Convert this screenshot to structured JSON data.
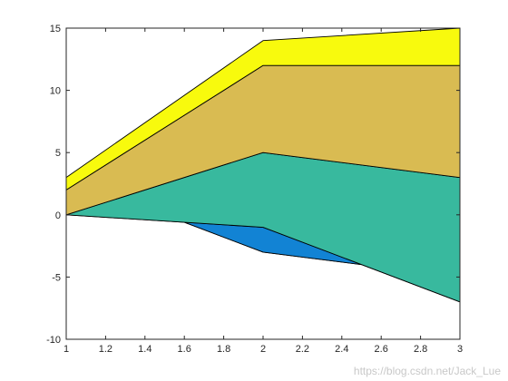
{
  "watermark": "https://blog.csdn.net/Jack_Lue",
  "chart_data": {
    "type": "area",
    "title": "",
    "xlabel": "",
    "ylabel": "",
    "xlim": [
      1,
      3
    ],
    "ylim": [
      -10,
      15
    ],
    "grid": false,
    "x_ticks": [
      1,
      1.2,
      1.4,
      1.6,
      1.8,
      2,
      2.2,
      2.4,
      2.6,
      2.8,
      3
    ],
    "x_tick_labels": [
      "1",
      "1.2",
      "1.4",
      "1.6",
      "1.8",
      "2",
      "2.2",
      "2.4",
      "2.6",
      "2.8",
      "3"
    ],
    "y_ticks": [
      -10,
      -5,
      0,
      5,
      10,
      15
    ],
    "y_tick_labels": [
      "-10",
      "-5",
      "0",
      "5",
      "10",
      "15"
    ],
    "x": [
      1,
      2,
      3
    ],
    "series": [
      {
        "values": [
          3,
          -3,
          -5
        ],
        "color": "#352a87"
      },
      {
        "values": [
          -3,
          2,
          -2
        ],
        "color": "#1283d4"
      },
      {
        "values": [
          0,
          6,
          10
        ],
        "color": "#38b99e"
      },
      {
        "values": [
          2,
          7,
          9
        ],
        "color": "#d9bb52"
      },
      {
        "values": [
          1,
          2,
          3
        ],
        "color": "#f8fa0d"
      }
    ]
  }
}
